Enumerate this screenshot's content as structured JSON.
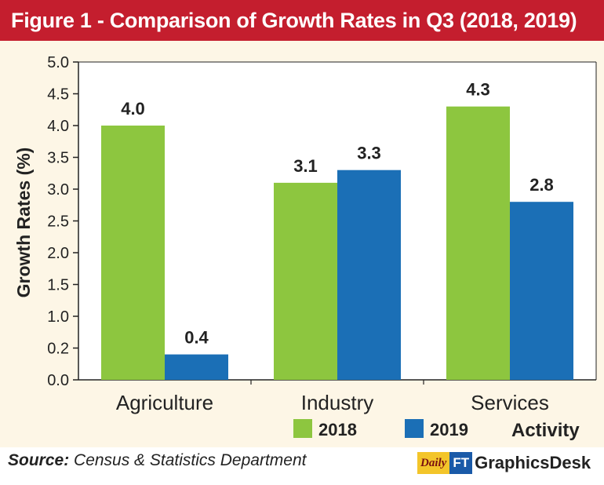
{
  "chart_data": {
    "type": "bar",
    "title": "Figure 1 - Comparison of Growth Rates in Q3 (2018, 2019)",
    "xlabel": "Activity",
    "ylabel": "Growth Rates (%)",
    "categories": [
      "Agriculture",
      "Industry",
      "Services"
    ],
    "series": [
      {
        "name": "2018",
        "values": [
          4.0,
          3.1,
          4.3
        ],
        "labels": [
          "4.0",
          "3.1",
          "4.3"
        ],
        "color": "#8dc63f"
      },
      {
        "name": "2019",
        "values": [
          0.4,
          3.3,
          2.8
        ],
        "labels": [
          "0.4",
          "3.3",
          "2.8"
        ],
        "color": "#1b6fb6"
      }
    ],
    "yticks": [
      "0.0",
      "0.2",
      "1.0",
      "1.5",
      "2.0",
      "2.5",
      "3.0",
      "3.5",
      "4.0",
      "4.5",
      "5.0"
    ],
    "ylim": [
      0,
      5
    ],
    "legend": "bottom",
    "grid": false
  },
  "footer": {
    "source_label": "Source:",
    "source_text": " Census & Statistics Department",
    "brand_daily": "Daily",
    "brand_ft": "FT",
    "brand_desk": "GraphicsDesk"
  },
  "colors": {
    "title_bg": "#c41e2e",
    "plot_bg": "#fdf6e6",
    "bar_2018": "#8dc63f",
    "bar_2019": "#1b6fb6"
  }
}
